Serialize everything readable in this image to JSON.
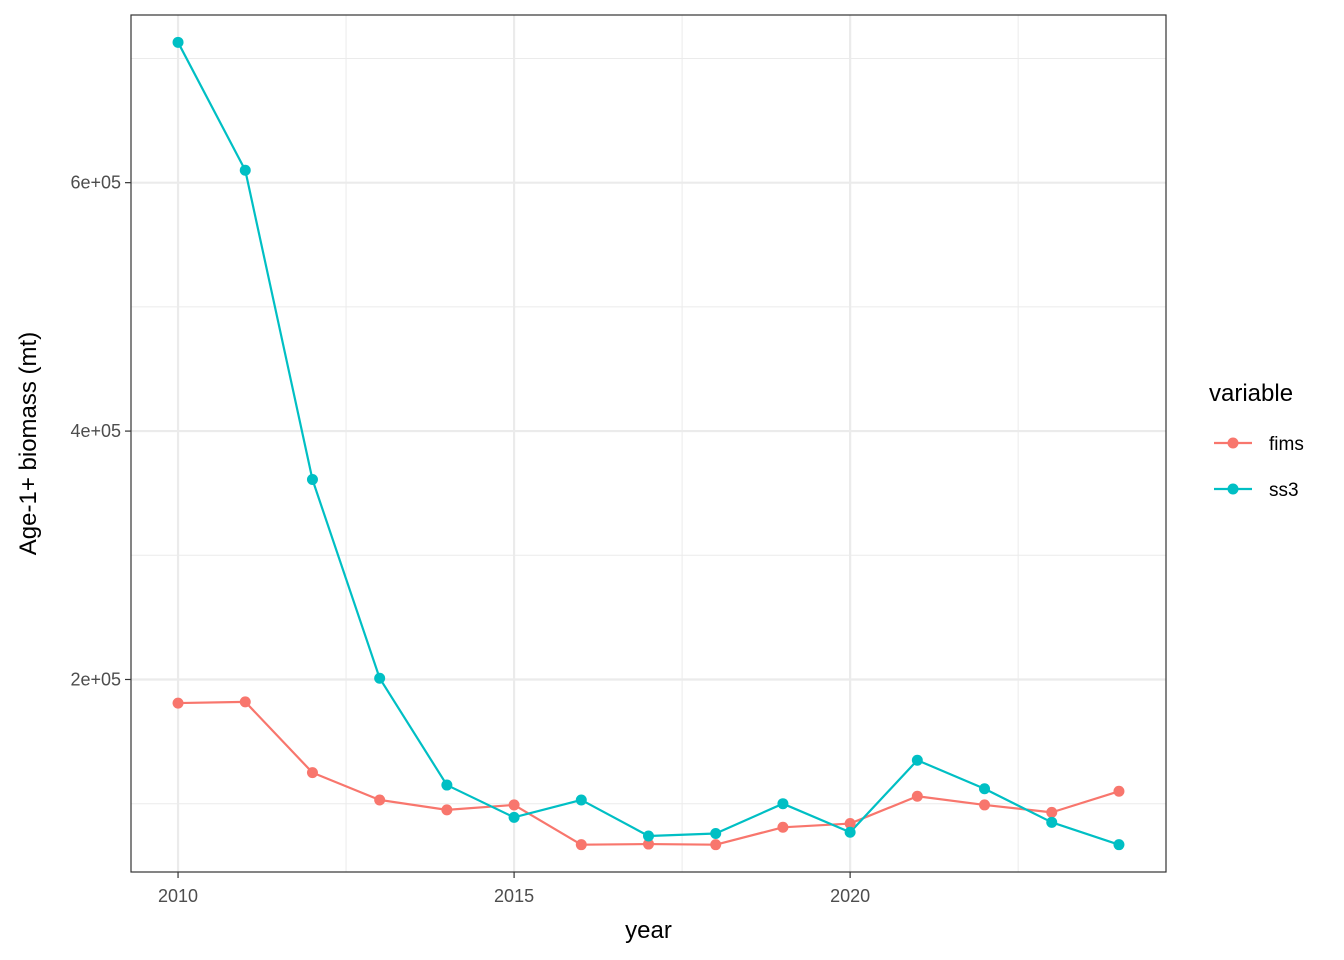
{
  "chart_data": {
    "type": "line",
    "title": "",
    "xlabel": "year",
    "ylabel": "Age-1+ biomass (mt)",
    "xlim": [
      2009.3,
      2024.7
    ],
    "ylim": [
      45000,
      735000
    ],
    "x_ticks": [
      2010,
      2015,
      2020
    ],
    "x_tick_labels": [
      "2010",
      "2015",
      "2020"
    ],
    "x_minor_ticks": [
      2012.5,
      2017.5,
      2022.5
    ],
    "y_ticks": [
      200000,
      400000,
      600000
    ],
    "y_tick_labels": [
      "2e+05",
      "4e+05",
      "6e+05"
    ],
    "y_minor_ticks": [
      100000,
      300000,
      500000,
      700000
    ],
    "grid": true,
    "legend_title": "variable",
    "legend_position": "right",
    "x": [
      2010,
      2011,
      2012,
      2013,
      2014,
      2015,
      2016,
      2017,
      2018,
      2019,
      2020,
      2021,
      2022,
      2023,
      2024
    ],
    "series": [
      {
        "name": "fims",
        "color": "#F8766D",
        "values": [
          181000,
          182000,
          125000,
          103000,
          95000,
          99000,
          67000,
          67500,
          67000,
          81000,
          84000,
          106000,
          99000,
          93000,
          110000
        ]
      },
      {
        "name": "ss3",
        "color": "#00BFC4",
        "values": [
          713000,
          610000,
          361000,
          201000,
          115000,
          89000,
          103000,
          74000,
          76000,
          100000,
          77000,
          135000,
          112000,
          85000,
          67000
        ]
      }
    ]
  }
}
